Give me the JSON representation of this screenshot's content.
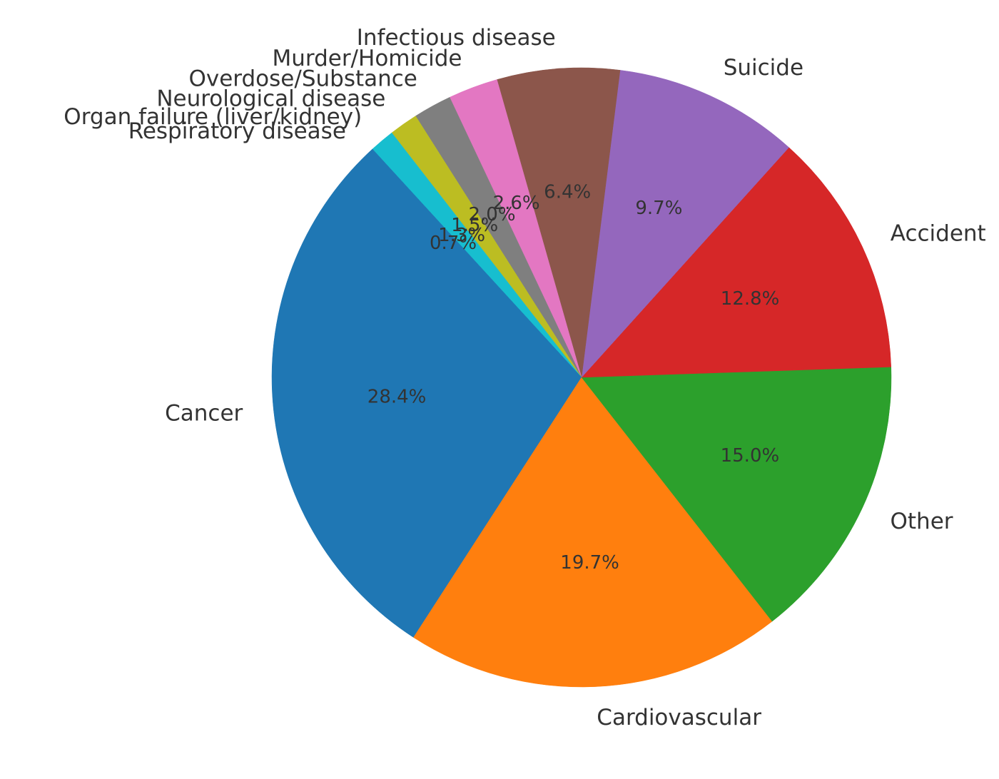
{
  "chart_data": {
    "type": "pie",
    "title": "",
    "startangle_deg": 135,
    "direction": "counterclockwise",
    "slices": [
      {
        "label": "Cancer",
        "value": 28.4,
        "pct_label": "28.4%",
        "color": "#1f77b4"
      },
      {
        "label": "Cardiovascular",
        "value": 19.7,
        "pct_label": "19.7%",
        "color": "#ff7f0e"
      },
      {
        "label": "Other",
        "value": 15.0,
        "pct_label": "15.0%",
        "color": "#2ca02c"
      },
      {
        "label": "Accident",
        "value": 12.8,
        "pct_label": "12.8%",
        "color": "#d62728"
      },
      {
        "label": "Suicide",
        "value": 9.7,
        "pct_label": "9.7%",
        "color": "#9467bd"
      },
      {
        "label": "Infectious disease",
        "value": 6.4,
        "pct_label": "6.4%",
        "color": "#8c564b"
      },
      {
        "label": "Murder/Homicide",
        "value": 2.6,
        "pct_label": "2.6%",
        "color": "#e377c2"
      },
      {
        "label": "Overdose/Substance",
        "value": 2.0,
        "pct_label": "2.0%",
        "color": "#7f7f7f"
      },
      {
        "label": "Neurological disease",
        "value": 1.5,
        "pct_label": "1.5%",
        "color": "#bcbd22"
      },
      {
        "label": "Organ failure (liver/kidney)",
        "value": 1.3,
        "pct_label": "1.3%",
        "color": "#17becf"
      },
      {
        "label": "Respiratory disease",
        "value": 0.7,
        "pct_label": "0.7%",
        "color": "#1f77b4"
      }
    ]
  }
}
